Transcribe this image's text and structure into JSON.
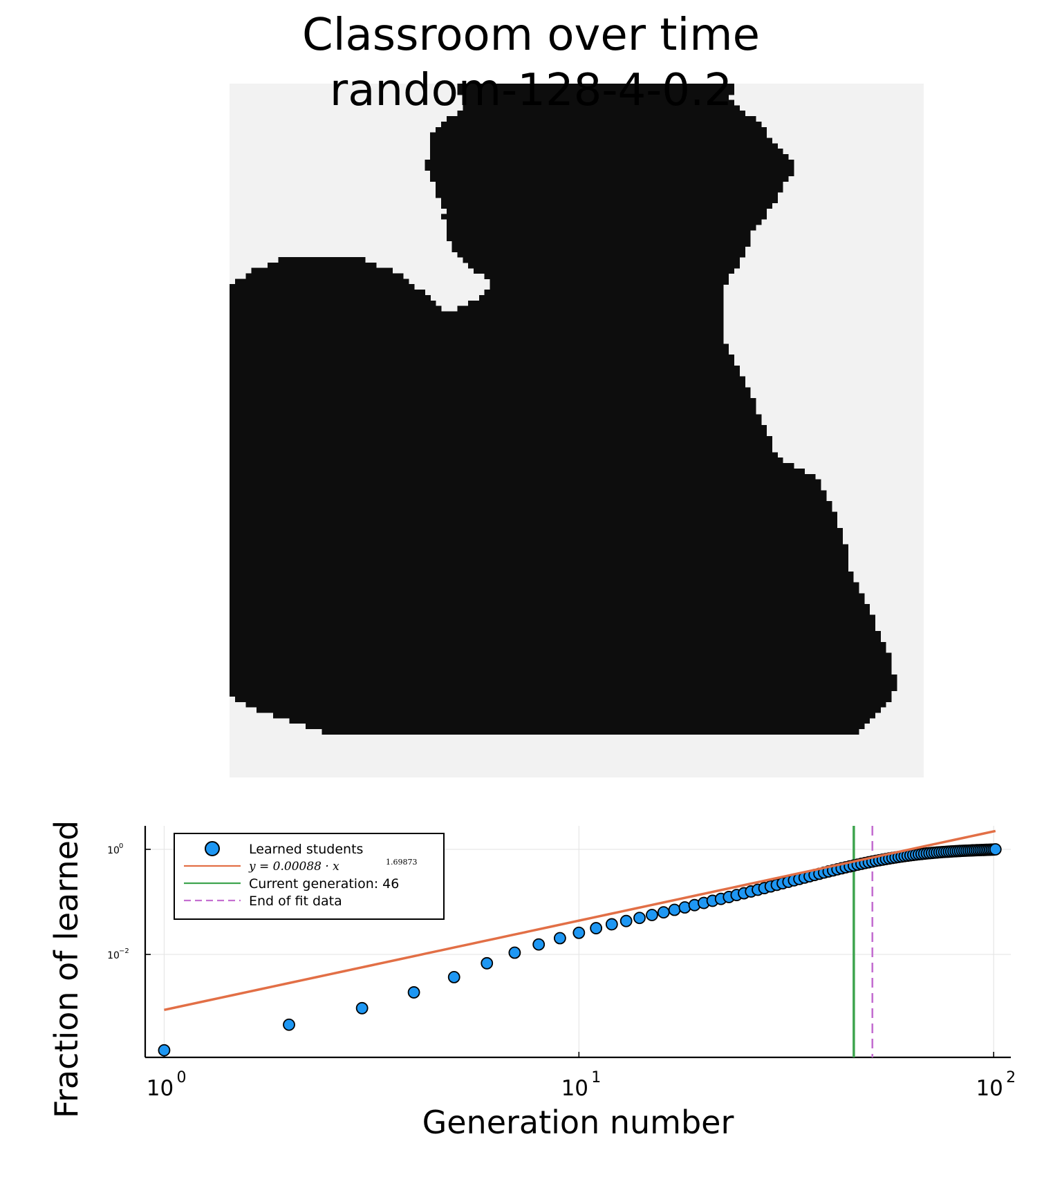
{
  "figure": {
    "title_lines": [
      "Classroom over time",
      "random-128-4-0.2"
    ]
  },
  "colors": {
    "learned_cell": "#0d0d0d",
    "unlearned_cell": "#f2f2f2",
    "scatter_fill": "#1e97f3",
    "fit_line": "#e26f46",
    "current_gen_line": "#3ea44e",
    "end_fit_line": "#c46fd1"
  },
  "chart_data": [
    {
      "type": "heatmap",
      "title": "",
      "rows": 128,
      "cols": 128,
      "values_legend": [
        "learned",
        "not learned"
      ],
      "learned_region_note": "single connected blob; the learned cells each row spans are listed as column ranges",
      "row_spans": [
        [
          [
            42,
            92
          ]
        ],
        [
          [
            42,
            92
          ]
        ],
        [
          [
            43,
            91
          ]
        ],
        [
          [
            43,
            92
          ]
        ],
        [
          [
            43,
            93
          ]
        ],
        [
          [
            42,
            94
          ]
        ],
        [
          [
            40,
            96
          ]
        ],
        [
          [
            39,
            97
          ]
        ],
        [
          [
            38,
            98
          ]
        ],
        [
          [
            37,
            98
          ]
        ],
        [
          [
            37,
            99
          ]
        ],
        [
          [
            37,
            100
          ]
        ],
        [
          [
            37,
            101
          ]
        ],
        [
          [
            37,
            102
          ]
        ],
        [
          [
            36,
            103
          ]
        ],
        [
          [
            36,
            103
          ]
        ],
        [
          [
            37,
            103
          ]
        ],
        [
          [
            37,
            102
          ]
        ],
        [
          [
            38,
            101
          ]
        ],
        [
          [
            38,
            101
          ]
        ],
        [
          [
            38,
            100
          ]
        ],
        [
          [
            39,
            100
          ]
        ],
        [
          [
            39,
            99
          ]
        ],
        [
          [
            40,
            98
          ]
        ],
        [
          [
            39,
            98
          ]
        ],
        [
          [
            40,
            97
          ]
        ],
        [
          [
            40,
            96
          ]
        ],
        [
          [
            40,
            95
          ]
        ],
        [
          [
            40,
            95
          ]
        ],
        [
          [
            41,
            95
          ]
        ],
        [
          [
            41,
            94
          ]
        ],
        [
          [
            42,
            94
          ]
        ],
        [
          [
            9,
            24
          ],
          [
            43,
            93
          ]
        ],
        [
          [
            7,
            26
          ],
          [
            44,
            93
          ]
        ],
        [
          [
            4,
            29
          ],
          [
            45,
            92
          ]
        ],
        [
          [
            3,
            31
          ],
          [
            47,
            91
          ]
        ],
        [
          [
            1,
            32
          ],
          [
            48,
            91
          ]
        ],
        [
          [
            0,
            33
          ],
          [
            48,
            90
          ]
        ],
        [
          [
            0,
            35
          ],
          [
            47,
            90
          ]
        ],
        [
          [
            0,
            36
          ],
          [
            46,
            90
          ]
        ],
        [
          [
            0,
            37
          ],
          [
            44,
            90
          ]
        ],
        [
          [
            0,
            38
          ],
          [
            42,
            90
          ]
        ],
        [
          [
            0,
            90
          ]
        ],
        [
          [
            0,
            90
          ]
        ],
        [
          [
            0,
            90
          ]
        ],
        [
          [
            0,
            90
          ]
        ],
        [
          [
            0,
            90
          ]
        ],
        [
          [
            0,
            90
          ]
        ],
        [
          [
            0,
            91
          ]
        ],
        [
          [
            0,
            91
          ]
        ],
        [
          [
            0,
            92
          ]
        ],
        [
          [
            0,
            92
          ]
        ],
        [
          [
            0,
            93
          ]
        ],
        [
          [
            0,
            93
          ]
        ],
        [
          [
            0,
            94
          ]
        ],
        [
          [
            0,
            94
          ]
        ],
        [
          [
            0,
            95
          ]
        ],
        [
          [
            0,
            95
          ]
        ],
        [
          [
            0,
            96
          ]
        ],
        [
          [
            0,
            96
          ]
        ],
        [
          [
            0,
            96
          ]
        ],
        [
          [
            0,
            97
          ]
        ],
        [
          [
            0,
            97
          ]
        ],
        [
          [
            0,
            98
          ]
        ],
        [
          [
            0,
            98
          ]
        ],
        [
          [
            0,
            99
          ]
        ],
        [
          [
            0,
            99
          ]
        ],
        [
          [
            0,
            99
          ]
        ],
        [
          [
            0,
            100
          ]
        ],
        [
          [
            0,
            101
          ]
        ],
        [
          [
            0,
            103
          ]
        ],
        [
          [
            0,
            105
          ]
        ],
        [
          [
            0,
            107
          ]
        ],
        [
          [
            0,
            108
          ]
        ],
        [
          [
            0,
            108
          ]
        ],
        [
          [
            0,
            109
          ]
        ],
        [
          [
            0,
            109
          ]
        ],
        [
          [
            0,
            110
          ]
        ],
        [
          [
            0,
            110
          ]
        ],
        [
          [
            0,
            111
          ]
        ],
        [
          [
            0,
            111
          ]
        ],
        [
          [
            0,
            111
          ]
        ],
        [
          [
            0,
            112
          ]
        ],
        [
          [
            0,
            112
          ]
        ],
        [
          [
            0,
            112
          ]
        ],
        [
          [
            0,
            113
          ]
        ],
        [
          [
            0,
            113
          ]
        ],
        [
          [
            0,
            113
          ]
        ],
        [
          [
            0,
            113
          ]
        ],
        [
          [
            0,
            113
          ]
        ],
        [
          [
            0,
            114
          ]
        ],
        [
          [
            0,
            114
          ]
        ],
        [
          [
            0,
            115
          ]
        ],
        [
          [
            0,
            115
          ]
        ],
        [
          [
            0,
            116
          ]
        ],
        [
          [
            0,
            116
          ]
        ],
        [
          [
            0,
            117
          ]
        ],
        [
          [
            0,
            117
          ]
        ],
        [
          [
            0,
            118
          ]
        ],
        [
          [
            0,
            118
          ]
        ],
        [
          [
            0,
            118
          ]
        ],
        [
          [
            0,
            119
          ]
        ],
        [
          [
            0,
            119
          ]
        ],
        [
          [
            0,
            120
          ]
        ],
        [
          [
            0,
            120
          ]
        ],
        [
          [
            0,
            121
          ]
        ],
        [
          [
            0,
            121
          ]
        ],
        [
          [
            0,
            121
          ]
        ],
        [
          [
            0,
            121
          ]
        ],
        [
          [
            0,
            122
          ]
        ],
        [
          [
            0,
            122
          ]
        ],
        [
          [
            0,
            122
          ]
        ],
        [
          [
            0,
            121
          ]
        ],
        [
          [
            1,
            121
          ]
        ],
        [
          [
            3,
            120
          ]
        ],
        [
          [
            5,
            119
          ]
        ],
        [
          [
            8,
            118
          ]
        ],
        [
          [
            11,
            117
          ]
        ],
        [
          [
            14,
            116
          ]
        ],
        [
          [
            17,
            115
          ]
        ]
      ]
    },
    {
      "type": "scatter",
      "title": "",
      "xlabel": "Generation number",
      "ylabel": "Fraction of learned",
      "xscale": "log10",
      "yscale": "log10",
      "xlim": [
        0.9,
        110
      ],
      "ylim": [
        0.00011,
        2.8
      ],
      "xticks": [
        1,
        10,
        100
      ],
      "xtick_labels": [
        {
          "base": "10",
          "exp": "0"
        },
        {
          "base": "10",
          "exp": "1"
        },
        {
          "base": "10",
          "exp": "2"
        }
      ],
      "yticks": [
        0.01,
        1
      ],
      "ytick_labels": [
        {
          "base": "10",
          "exp": "−2"
        },
        {
          "base": "10",
          "exp": "0"
        }
      ],
      "grid": true,
      "legend_position": "top-left",
      "series": [
        {
          "name": "Learned students",
          "kind": "markers",
          "x": [
            1,
            2,
            3,
            4,
            5,
            6,
            7,
            8,
            9,
            10,
            11,
            12,
            13,
            14,
            15,
            16,
            17,
            18,
            19,
            20,
            21,
            22,
            23,
            24,
            25,
            26,
            27,
            28,
            29,
            30,
            31,
            32,
            33,
            34,
            35,
            36,
            37,
            38,
            39,
            40,
            41,
            42,
            43,
            44,
            45,
            46,
            47,
            48,
            49,
            50,
            51,
            52,
            53,
            54,
            55,
            56,
            57,
            58,
            59,
            60,
            61,
            62,
            63,
            64,
            65,
            66,
            67,
            68,
            69,
            70,
            71,
            72,
            73,
            74,
            75,
            76,
            77,
            78,
            79,
            80,
            81,
            82,
            83,
            84,
            85,
            86,
            87,
            88,
            89,
            90,
            91,
            92,
            93,
            94,
            95,
            96,
            97,
            98,
            99,
            100,
            101
          ],
          "y": [
            0.00015,
            0.00046,
            0.00095,
            0.0019,
            0.0037,
            0.0068,
            0.0108,
            0.0155,
            0.0204,
            0.0258,
            0.0316,
            0.0375,
            0.0433,
            0.0495,
            0.0563,
            0.0633,
            0.0706,
            0.0785,
            0.0868,
            0.0955,
            0.105,
            0.114,
            0.124,
            0.135,
            0.146,
            0.158,
            0.17,
            0.183,
            0.197,
            0.211,
            0.226,
            0.241,
            0.257,
            0.273,
            0.29,
            0.307,
            0.325,
            0.343,
            0.361,
            0.38,
            0.398,
            0.417,
            0.436,
            0.455,
            0.474,
            0.493,
            0.512,
            0.531,
            0.55,
            0.568,
            0.586,
            0.604,
            0.621,
            0.638,
            0.655,
            0.671,
            0.687,
            0.702,
            0.717,
            0.731,
            0.745,
            0.758,
            0.771,
            0.783,
            0.795,
            0.806,
            0.817,
            0.827,
            0.837,
            0.846,
            0.855,
            0.863,
            0.871,
            0.879,
            0.886,
            0.893,
            0.899,
            0.905,
            0.911,
            0.917,
            0.922,
            0.927,
            0.932,
            0.937,
            0.941,
            0.945,
            0.949,
            0.953,
            0.957,
            0.96,
            0.964,
            0.967,
            0.97,
            0.973,
            0.976,
            0.979,
            0.982,
            0.985,
            0.988,
            0.992,
            1.0
          ]
        },
        {
          "name": "y = 0.00088 · x^1.69873",
          "name_parts": {
            "lhs": "y = 0.00088 · x",
            "exp": "1.69873"
          },
          "kind": "line",
          "coefficient": 0.00088,
          "exponent": 1.69873,
          "x_range": [
            1,
            101
          ]
        },
        {
          "name": "Current generation: 46",
          "kind": "vline",
          "x": 46
        },
        {
          "name": "End of fit data",
          "kind": "vline-dashed",
          "x": 51
        }
      ]
    }
  ]
}
